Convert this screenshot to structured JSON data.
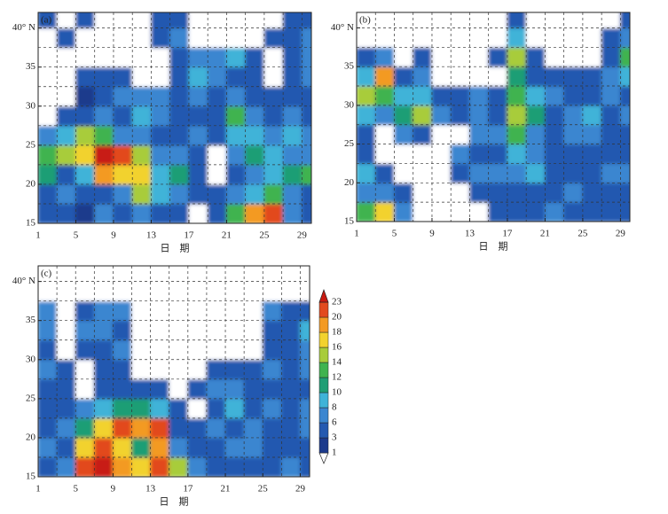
{
  "chart_data": [
    {
      "type": "contour",
      "label": "(a)",
      "xlabel": "日　期",
      "xlim": [
        1,
        30
      ],
      "ylim": [
        15,
        42
      ],
      "xticks": [
        1,
        5,
        9,
        13,
        17,
        21,
        25,
        29
      ],
      "yticks": [
        15,
        20,
        25,
        30,
        35,
        {
          "value": 40,
          "label": "40° N"
        }
      ],
      "xgrid": [
        3,
        5,
        7,
        9,
        11,
        13,
        15,
        17,
        19,
        21,
        23,
        25,
        27,
        29
      ],
      "ygrid": [
        17.5,
        20,
        22.5,
        25,
        27.5,
        30,
        32.5,
        35,
        37.5,
        40
      ],
      "x": [
        2,
        4,
        6,
        8,
        10,
        12,
        14,
        16,
        18,
        20,
        22,
        24,
        26,
        28,
        30
      ],
      "y": [
        16.25,
        18.75,
        21.25,
        23.75,
        26.25,
        28.75,
        31.25,
        33.75,
        36.25,
        38.75,
        41.25
      ],
      "z": [
        [
          3,
          3,
          1,
          6,
          3,
          6,
          3,
          3,
          0,
          3,
          12,
          18,
          20,
          6,
          3
        ],
        [
          3,
          6,
          3,
          3,
          6,
          14,
          8,
          6,
          3,
          3,
          6,
          8,
          12,
          6,
          3
        ],
        [
          10,
          3,
          8,
          18,
          16,
          16,
          8,
          10,
          3,
          0,
          3,
          6,
          8,
          10,
          12
        ],
        [
          12,
          14,
          16,
          23,
          20,
          14,
          6,
          6,
          3,
          0,
          6,
          10,
          8,
          6,
          6
        ],
        [
          6,
          8,
          14,
          12,
          6,
          6,
          3,
          3,
          6,
          3,
          8,
          8,
          6,
          8,
          6
        ],
        [
          0,
          3,
          3,
          6,
          3,
          8,
          6,
          3,
          3,
          3,
          12,
          6,
          3,
          6,
          3
        ],
        [
          0,
          0,
          1,
          3,
          6,
          6,
          6,
          3,
          6,
          3,
          6,
          3,
          3,
          3,
          3
        ],
        [
          0,
          0,
          3,
          3,
          3,
          0,
          0,
          3,
          8,
          6,
          3,
          3,
          0,
          3,
          6
        ],
        [
          0,
          0,
          0,
          0,
          0,
          0,
          0,
          3,
          6,
          6,
          8,
          3,
          0,
          3,
          6
        ],
        [
          0,
          3,
          0,
          0,
          0,
          0,
          3,
          6,
          0,
          0,
          0,
          0,
          3,
          3,
          6
        ],
        [
          3,
          0,
          3,
          0,
          0,
          0,
          3,
          3,
          0,
          0,
          0,
          0,
          0,
          3,
          3
        ]
      ]
    },
    {
      "type": "contour",
      "label": "(b)",
      "xlabel": "日　期",
      "xlim": [
        1,
        30
      ],
      "ylim": [
        15,
        42
      ],
      "xticks": [
        1,
        5,
        9,
        13,
        17,
        21,
        25,
        29
      ],
      "yticks": [
        15,
        20,
        25,
        30,
        35,
        {
          "value": 40,
          "label": "40° N"
        }
      ],
      "xgrid": [
        3,
        5,
        7,
        9,
        11,
        13,
        15,
        17,
        19,
        21,
        23,
        25,
        27,
        29
      ],
      "ygrid": [
        17.5,
        20,
        22.5,
        25,
        27.5,
        30,
        32.5,
        35,
        37.5,
        40
      ],
      "x": [
        2,
        4,
        6,
        8,
        10,
        12,
        14,
        16,
        18,
        20,
        22,
        24,
        26,
        28,
        30
      ],
      "y": [
        16.25,
        18.75,
        21.25,
        23.75,
        26.25,
        28.75,
        31.25,
        33.75,
        36.25,
        38.75,
        41.25
      ],
      "z": [
        [
          12,
          16,
          6,
          0,
          0,
          0,
          0,
          3,
          3,
          3,
          6,
          3,
          3,
          3,
          3
        ],
        [
          6,
          6,
          3,
          0,
          0,
          0,
          3,
          3,
          3,
          3,
          3,
          6,
          3,
          3,
          3
        ],
        [
          8,
          3,
          0,
          0,
          0,
          3,
          6,
          6,
          6,
          8,
          3,
          3,
          3,
          6,
          6
        ],
        [
          3,
          0,
          0,
          0,
          0,
          6,
          3,
          3,
          8,
          6,
          3,
          3,
          3,
          3,
          3
        ],
        [
          3,
          0,
          6,
          3,
          0,
          0,
          6,
          6,
          12,
          6,
          3,
          6,
          6,
          3,
          3
        ],
        [
          8,
          6,
          10,
          14,
          6,
          3,
          6,
          3,
          14,
          10,
          3,
          6,
          8,
          3,
          6
        ],
        [
          14,
          12,
          8,
          8,
          3,
          3,
          6,
          3,
          12,
          8,
          6,
          3,
          3,
          6,
          3
        ],
        [
          8,
          18,
          3,
          6,
          0,
          0,
          0,
          0,
          10,
          3,
          3,
          3,
          3,
          6,
          8
        ],
        [
          3,
          6,
          0,
          3,
          0,
          0,
          0,
          3,
          14,
          3,
          0,
          0,
          0,
          3,
          12
        ],
        [
          0,
          0,
          0,
          0,
          0,
          0,
          0,
          0,
          8,
          0,
          0,
          0,
          0,
          3,
          6
        ],
        [
          0,
          0,
          0,
          0,
          0,
          0,
          0,
          0,
          3,
          0,
          0,
          0,
          0,
          0,
          3
        ]
      ]
    },
    {
      "type": "contour",
      "label": "(c)",
      "xlabel": "日　期",
      "xlim": [
        1,
        30
      ],
      "ylim": [
        15,
        42
      ],
      "xticks": [
        1,
        5,
        9,
        13,
        17,
        21,
        25,
        29
      ],
      "yticks": [
        15,
        20,
        25,
        30,
        35,
        {
          "value": 40,
          "label": "40° N"
        }
      ],
      "xgrid": [
        3,
        5,
        7,
        9,
        11,
        13,
        15,
        17,
        19,
        21,
        23,
        25,
        27,
        29
      ],
      "ygrid": [
        17.5,
        20,
        22.5,
        25,
        27.5,
        30,
        32.5,
        35,
        37.5,
        40
      ],
      "x": [
        2,
        4,
        6,
        8,
        10,
        12,
        14,
        16,
        18,
        20,
        22,
        24,
        26,
        28,
        30
      ],
      "y": [
        16.25,
        18.75,
        21.25,
        23.75,
        26.25,
        28.75,
        31.25,
        33.75,
        36.25,
        38.75,
        41.25
      ],
      "z": [
        [
          3,
          6,
          20,
          23,
          18,
          16,
          20,
          14,
          6,
          3,
          3,
          3,
          3,
          6,
          3
        ],
        [
          6,
          3,
          16,
          20,
          16,
          10,
          18,
          6,
          3,
          3,
          6,
          6,
          3,
          3,
          3
        ],
        [
          3,
          6,
          10,
          16,
          20,
          18,
          20,
          3,
          3,
          6,
          3,
          6,
          3,
          3,
          6
        ],
        [
          3,
          3,
          6,
          8,
          10,
          10,
          8,
          3,
          0,
          3,
          8,
          3,
          6,
          3,
          6
        ],
        [
          3,
          3,
          0,
          3,
          3,
          3,
          3,
          0,
          3,
          6,
          6,
          3,
          3,
          3,
          3
        ],
        [
          6,
          3,
          0,
          3,
          3,
          0,
          0,
          0,
          0,
          3,
          3,
          3,
          6,
          3,
          6
        ],
        [
          3,
          0,
          3,
          3,
          6,
          0,
          0,
          0,
          0,
          0,
          0,
          0,
          3,
          3,
          6
        ],
        [
          6,
          0,
          6,
          6,
          3,
          0,
          0,
          0,
          0,
          0,
          0,
          0,
          3,
          3,
          8
        ],
        [
          6,
          0,
          3,
          6,
          6,
          0,
          0,
          0,
          0,
          0,
          0,
          0,
          6,
          3,
          3
        ],
        [
          0,
          0,
          0,
          0,
          0,
          0,
          0,
          0,
          0,
          0,
          0,
          0,
          0,
          0,
          0
        ],
        [
          0,
          0,
          0,
          0,
          0,
          0,
          0,
          0,
          0,
          0,
          0,
          0,
          0,
          0,
          0
        ]
      ],
      "colorbar": {
        "levels": [
          1,
          3,
          6,
          8,
          10,
          12,
          14,
          16,
          18,
          20,
          23
        ],
        "colors": [
          "#ffffff",
          "#1c3a8c",
          "#2459b0",
          "#3b86d0",
          "#3fb3d8",
          "#1f9e74",
          "#3fb34f",
          "#a8cc3a",
          "#f2d22e",
          "#f39a24",
          "#e24a1f",
          "#c81a12"
        ]
      }
    }
  ]
}
